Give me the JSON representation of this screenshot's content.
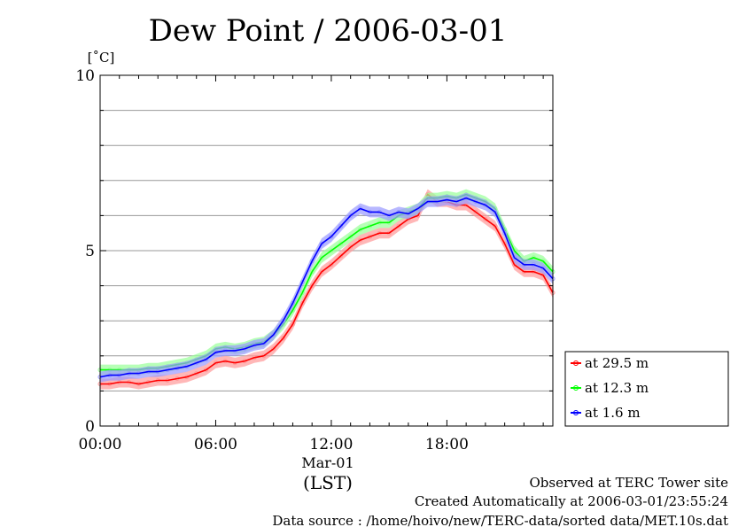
{
  "chart_data": {
    "type": "line",
    "title": "Dew Point / 2006-03-01",
    "ylabel": "[˚C]",
    "xlabel_date": "Mar-01",
    "xlabel_tz": "(LST)",
    "ylim": [
      0,
      10
    ],
    "yticks": [
      0,
      5,
      10
    ],
    "xlim_hours": [
      0,
      23.5
    ],
    "xticks": [
      {
        "hour": 0,
        "label": "00:00"
      },
      {
        "hour": 6,
        "label": "06:00"
      },
      {
        "hour": 12,
        "label": "12:00"
      },
      {
        "hour": 18,
        "label": "18:00"
      }
    ],
    "grid": true,
    "legend_position": "right",
    "hours": [
      0,
      0.5,
      1,
      1.5,
      2,
      2.5,
      3,
      3.5,
      4,
      4.5,
      5,
      5.5,
      6,
      6.5,
      7,
      7.5,
      8,
      8.5,
      9,
      9.5,
      10,
      10.5,
      11,
      11.5,
      12,
      12.5,
      13,
      13.5,
      14,
      14.5,
      15,
      15.5,
      16,
      16.5,
      17,
      17.5,
      18,
      18.5,
      19,
      19.5,
      20,
      20.5,
      21,
      21.5,
      22,
      22.5,
      23,
      23.5
    ],
    "series": [
      {
        "name": "at 29.5 m",
        "color": "#ff0000",
        "values": [
          1.2,
          1.2,
          1.25,
          1.25,
          1.2,
          1.25,
          1.3,
          1.3,
          1.35,
          1.4,
          1.5,
          1.6,
          1.8,
          1.85,
          1.8,
          1.85,
          1.95,
          2.0,
          2.2,
          2.5,
          2.9,
          3.5,
          4.0,
          4.4,
          4.6,
          4.85,
          5.1,
          5.3,
          5.4,
          5.5,
          5.5,
          5.7,
          5.9,
          6.0,
          6.6,
          6.4,
          6.4,
          6.3,
          6.3,
          6.1,
          5.9,
          5.7,
          5.2,
          4.6,
          4.4,
          4.4,
          4.3,
          3.8
        ]
      },
      {
        "name": "at 12.3 m",
        "color": "#00ff00",
        "values": [
          1.6,
          1.6,
          1.6,
          1.6,
          1.6,
          1.65,
          1.65,
          1.7,
          1.75,
          1.8,
          1.9,
          2.0,
          2.2,
          2.25,
          2.2,
          2.25,
          2.35,
          2.4,
          2.6,
          2.9,
          3.3,
          3.8,
          4.4,
          4.8,
          5.0,
          5.2,
          5.4,
          5.6,
          5.7,
          5.8,
          5.8,
          6.0,
          6.1,
          6.2,
          6.5,
          6.5,
          6.55,
          6.5,
          6.6,
          6.5,
          6.4,
          6.2,
          5.6,
          5.0,
          4.7,
          4.8,
          4.7,
          4.4
        ]
      },
      {
        "name": "at 1.6 m",
        "color": "#0000ff",
        "values": [
          1.4,
          1.45,
          1.45,
          1.5,
          1.5,
          1.55,
          1.55,
          1.6,
          1.65,
          1.7,
          1.8,
          1.9,
          2.1,
          2.15,
          2.15,
          2.2,
          2.3,
          2.35,
          2.6,
          3.0,
          3.5,
          4.1,
          4.7,
          5.2,
          5.4,
          5.7,
          6.0,
          6.2,
          6.1,
          6.1,
          6.0,
          6.1,
          6.05,
          6.2,
          6.4,
          6.4,
          6.45,
          6.4,
          6.5,
          6.4,
          6.3,
          6.1,
          5.5,
          4.8,
          4.6,
          4.6,
          4.5,
          4.2
        ]
      }
    ]
  },
  "footer": {
    "line1": "Observed at TERC Tower site",
    "line2": "Created Automatically at 2006-03-01/23:55:24",
    "line3": "Data source : /home/hoivo/new/TERC-data/sorted  data/MET.10s.dat"
  }
}
